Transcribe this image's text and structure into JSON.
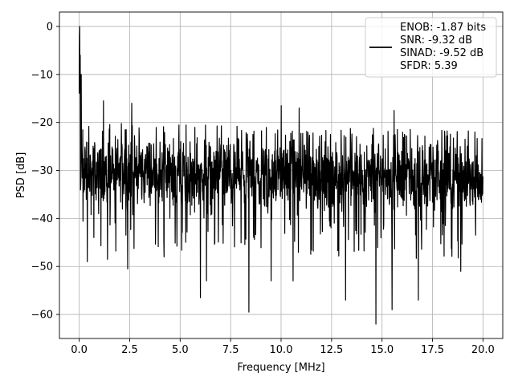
{
  "chart_data": {
    "type": "line",
    "title": "",
    "xlabel": "Frequency [MHz]",
    "ylabel": "PSD [dB]",
    "xlim": [
      -0.98,
      20.98
    ],
    "ylim": [
      -65,
      3
    ],
    "xticks": [
      0.0,
      2.5,
      5.0,
      7.5,
      10.0,
      12.5,
      15.0,
      17.5,
      20.0
    ],
    "xtick_labels": [
      "0.0",
      "2.5",
      "5.0",
      "7.5",
      "10.0",
      "12.5",
      "15.0",
      "17.5",
      "20.0"
    ],
    "yticks": [
      0,
      -10,
      -20,
      -30,
      -40,
      -50,
      -60
    ],
    "ytick_labels": [
      "0",
      "−10",
      "−20",
      "−30",
      "−40",
      "−50",
      "−60"
    ],
    "grid": true,
    "legend_position": "upper right",
    "line_color": "#000000",
    "legend": {
      "lines": [
        "ENOB: -1.87 bits",
        "SNR: -9.32 dB",
        "SINAD: -9.52 dB",
        "SFDR: 5.39"
      ]
    },
    "series": [
      {
        "trace_type": "noise-spectrum",
        "x_range": [
          0,
          20
        ],
        "sample_count": 1600,
        "baseline_db": -30,
        "upper_envelope_db": -22,
        "lower_envelope_db": -38,
        "peaks": [
          {
            "x": 0.0,
            "y": 0
          },
          {
            "x": 0.05,
            "y": -6
          },
          {
            "x": 0.1,
            "y": -10
          },
          {
            "x": 1.2,
            "y": -15.5
          },
          {
            "x": 2.6,
            "y": -16
          },
          {
            "x": 10.0,
            "y": -16.5
          },
          {
            "x": 10.9,
            "y": -17
          },
          {
            "x": 15.6,
            "y": -17.5
          },
          {
            "x": 19.6,
            "y": -22
          }
        ],
        "dips": [
          {
            "x": 0.4,
            "y": -49
          },
          {
            "x": 1.4,
            "y": -48.5
          },
          {
            "x": 2.4,
            "y": -50.5
          },
          {
            "x": 4.2,
            "y": -48
          },
          {
            "x": 6.0,
            "y": -56.5
          },
          {
            "x": 6.3,
            "y": -53
          },
          {
            "x": 8.4,
            "y": -59.5
          },
          {
            "x": 9.5,
            "y": -53
          },
          {
            "x": 10.6,
            "y": -53
          },
          {
            "x": 13.2,
            "y": -57
          },
          {
            "x": 14.7,
            "y": -62
          },
          {
            "x": 15.5,
            "y": -59
          },
          {
            "x": 16.8,
            "y": -57
          },
          {
            "x": 18.9,
            "y": -51
          }
        ]
      }
    ]
  }
}
